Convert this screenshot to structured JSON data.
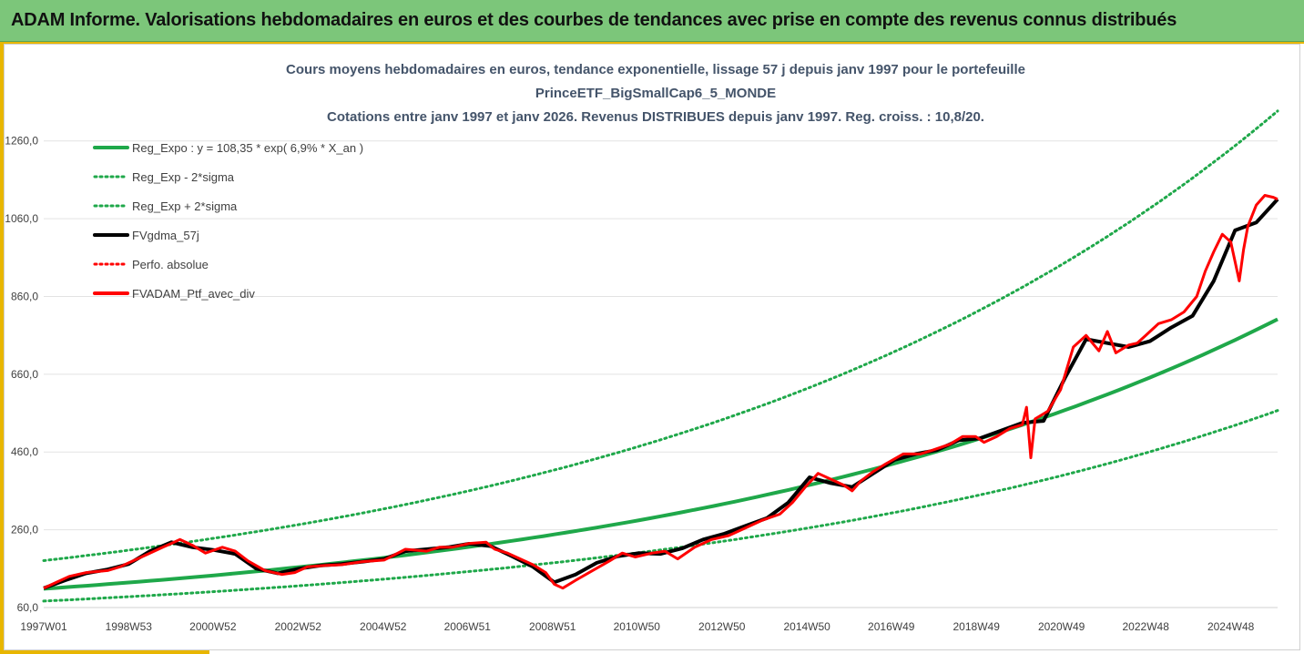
{
  "banner": {
    "title": "ADAM Informe. Valorisations hebdomadaires en euros et des courbes de tendances avec prise en compte des revenus connus distribués"
  },
  "colors": {
    "banner_bg": "#7cc67a",
    "accent": "#e8b600",
    "trend": "#1fa84a",
    "portfolio": "#ff0000",
    "smoothed": "#000000"
  },
  "chart_data": {
    "type": "line",
    "title_lines": [
      "Cours moyens hebdomadaires  en euros, tendance exponentielle, lissage 57 j depuis janv 1997 pour le portefeuille",
      "PrinceETF_BigSmallCap6_5_MONDE",
      "Cotations entre janv 1997 et janv 2026. Revenus DISTRIBUES depuis janv 1997. Reg. croiss. : 10,8/20."
    ],
    "x_range": [
      1997.0,
      2026.0
    ],
    "ylim": [
      60,
      1360
    ],
    "y_ticks": [
      "60,0",
      "260,0",
      "460,0",
      "660,0",
      "860,0",
      "1060,0",
      "1260,0"
    ],
    "x_ticks": [
      "1997W01",
      "1998W53",
      "2000W52",
      "2002W52",
      "2004W52",
      "2006W51",
      "2008W51",
      "2010W50",
      "2012W50",
      "2014W50",
      "2016W49",
      "2018W49",
      "2020W49",
      "2022W48",
      "2024W48"
    ],
    "grid": "horizontal",
    "legend_position": "top-left",
    "legend": [
      "Reg_Expo : y = 108,35 * exp( 6,9% *  X_an )",
      "Reg_Exp - 2*sigma",
      "Reg_Exp + 2*sigma",
      "FVgdma_57j",
      "Perfo. absolue",
      "FVADAM_Ptf_avec_div"
    ],
    "regression": {
      "a": 108.35,
      "b": 0.069,
      "sigma_low_factor": 0.707,
      "sigma_high_factor": 1.668
    },
    "series": [
      {
        "name": "FVADAM_Ptf_avec_div",
        "x": [
          1997.0,
          1997.3,
          1997.6,
          1998.0,
          1998.5,
          1998.8,
          1999.0,
          1999.4,
          1999.8,
          2000.0,
          2000.2,
          2000.5,
          2000.8,
          2001.2,
          2001.5,
          2001.8,
          2002.2,
          2002.6,
          2002.9,
          2003.2,
          2003.6,
          2004.0,
          2004.5,
          2005.0,
          2005.5,
          2006.0,
          2006.3,
          2006.6,
          2007.0,
          2007.4,
          2007.6,
          2007.9,
          2008.2,
          2008.5,
          2008.8,
          2009.0,
          2009.2,
          2009.5,
          2009.9,
          2010.3,
          2010.6,
          2010.9,
          2011.3,
          2011.6,
          2011.9,
          2012.3,
          2012.7,
          2013.1,
          2013.5,
          2013.9,
          2014.3,
          2014.6,
          2014.9,
          2015.2,
          2015.4,
          2015.6,
          2015.8,
          2016.0,
          2016.2,
          2016.5,
          2016.8,
          2017.2,
          2017.6,
          2017.9,
          2018.3,
          2018.6,
          2018.9,
          2019.1,
          2019.4,
          2019.7,
          2020.0,
          2020.1,
          2020.2,
          2020.3,
          2020.6,
          2020.9,
          2021.2,
          2021.5,
          2021.8,
          2022.0,
          2022.2,
          2022.5,
          2022.7,
          2022.9,
          2023.2,
          2023.5,
          2023.8,
          2024.1,
          2024.3,
          2024.5,
          2024.7,
          2024.9,
          2025.1,
          2025.2,
          2025.3,
          2025.5,
          2025.7,
          2025.9,
          2026.0
        ],
        "y": [
          110,
          125,
          140,
          150,
          155,
          165,
          175,
          195,
          215,
          225,
          235,
          220,
          200,
          215,
          205,
          180,
          155,
          145,
          150,
          165,
          168,
          170,
          178,
          182,
          210,
          205,
          215,
          215,
          225,
          228,
          210,
          200,
          185,
          170,
          150,
          120,
          110,
          130,
          155,
          180,
          200,
          190,
          200,
          205,
          185,
          215,
          235,
          245,
          265,
          285,
          300,
          330,
          370,
          405,
          395,
          385,
          375,
          360,
          385,
          410,
          430,
          455,
          455,
          465,
          480,
          500,
          500,
          485,
          500,
          520,
          530,
          575,
          445,
          545,
          565,
          620,
          730,
          760,
          720,
          770,
          715,
          735,
          740,
          760,
          790,
          800,
          820,
          860,
          925,
          975,
          1020,
          1000,
          900,
          980,
          1040,
          1095,
          1120,
          1115,
          1110
        ]
      },
      {
        "name": "FVgdma_57j",
        "x": [
          1997.0,
          1997.5,
          1998.0,
          1998.5,
          1999.0,
          1999.5,
          2000.0,
          2000.5,
          2001.0,
          2001.5,
          2002.0,
          2002.5,
          2003.0,
          2003.5,
          2004.0,
          2004.5,
          2005.0,
          2005.5,
          2006.0,
          2006.5,
          2007.0,
          2007.5,
          2008.0,
          2008.5,
          2009.0,
          2009.5,
          2010.0,
          2010.5,
          2011.0,
          2011.5,
          2012.0,
          2012.5,
          2013.0,
          2013.5,
          2014.0,
          2014.5,
          2015.0,
          2015.5,
          2016.0,
          2016.5,
          2017.0,
          2017.5,
          2018.0,
          2018.5,
          2019.0,
          2019.5,
          2020.0,
          2020.5,
          2021.0,
          2021.5,
          2022.0,
          2022.5,
          2023.0,
          2023.5,
          2024.0,
          2024.5,
          2025.0,
          2025.5,
          2026.0
        ],
        "y": [
          110,
          130,
          148,
          158,
          172,
          205,
          228,
          215,
          208,
          198,
          160,
          148,
          160,
          168,
          172,
          178,
          185,
          205,
          210,
          215,
          224,
          218,
          192,
          165,
          125,
          145,
          175,
          192,
          200,
          198,
          212,
          235,
          250,
          270,
          290,
          330,
          395,
          380,
          370,
          405,
          440,
          455,
          465,
          490,
          495,
          515,
          535,
          540,
          650,
          750,
          740,
          730,
          745,
          780,
          810,
          900,
          1030,
          1050,
          1110
        ]
      }
    ]
  }
}
